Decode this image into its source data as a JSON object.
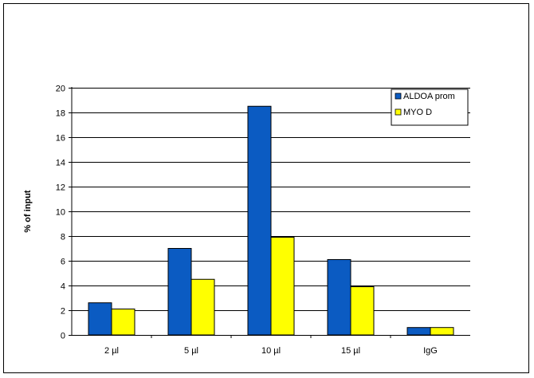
{
  "chart_data": {
    "type": "bar",
    "title": "",
    "xlabel": "",
    "ylabel": "% of input",
    "ylim": [
      0,
      20
    ],
    "yticks": [
      0,
      2,
      4,
      6,
      8,
      10,
      12,
      14,
      16,
      18,
      20
    ],
    "grid": true,
    "legend_position": "top-right",
    "categories": [
      "2 µl",
      "5 µl",
      "10 µl",
      "15 µl",
      "IgG"
    ],
    "series": [
      {
        "name": "ALDOA prom",
        "color": "#0b5bc2",
        "values": [
          2.6,
          7.0,
          18.5,
          6.1,
          0.6
        ]
      },
      {
        "name": "MYO D",
        "color": "#ffff00",
        "values": [
          2.1,
          4.5,
          7.9,
          3.9,
          0.6
        ]
      }
    ]
  }
}
